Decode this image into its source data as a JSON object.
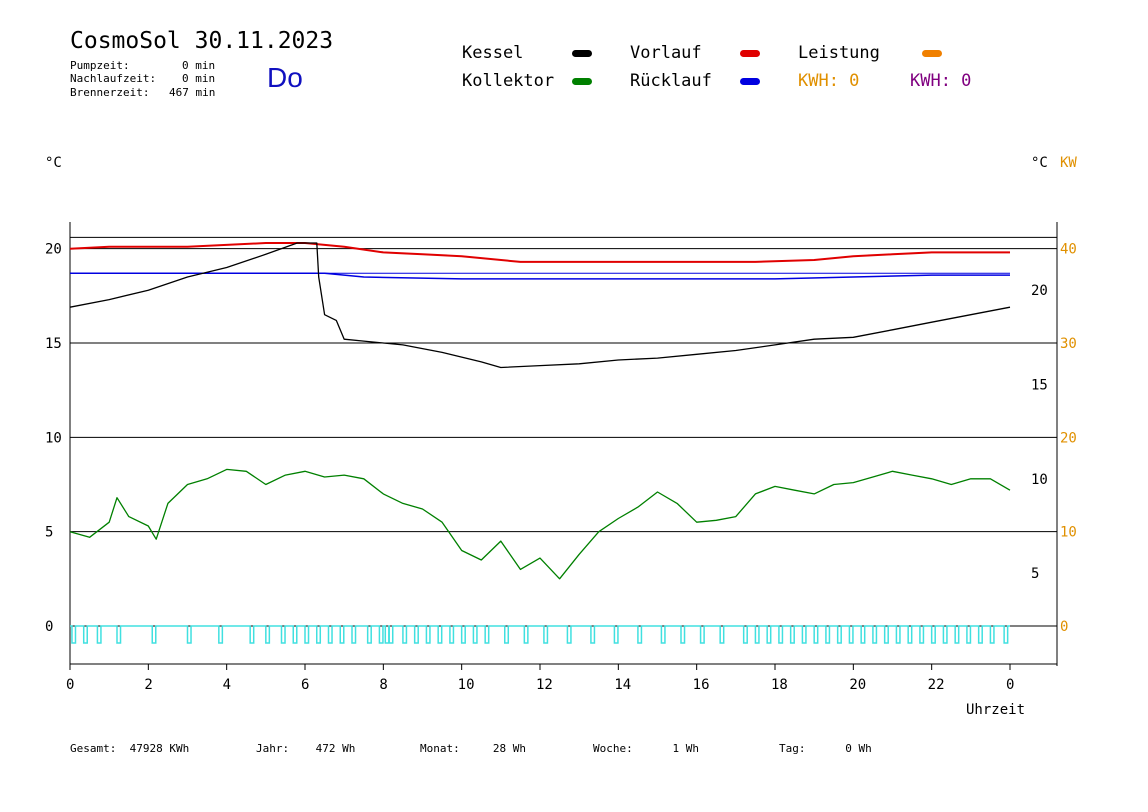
{
  "header": {
    "title": "CosmoSol 30.11.2023",
    "pumpzeit_label": "Pumpzeit:",
    "pumpzeit_value": "0 min",
    "nachlaufzeit_label": "Nachlaufzeit:",
    "nachlaufzeit_value": "0 min",
    "brennerzeit_label": "Brennerzeit:",
    "brennerzeit_value": "467 min",
    "day": "Do"
  },
  "legend": {
    "kessel": {
      "label": "Kessel",
      "color": "#000000"
    },
    "kollektor": {
      "label": "Kollektor",
      "color": "#008000"
    },
    "vorlauf": {
      "label": "Vorlauf",
      "color": "#e00000"
    },
    "ruecklauf": {
      "label": "Rücklauf",
      "color": "#0000e0"
    },
    "leistung": {
      "label": "Leistung",
      "color": "#f08000"
    },
    "kwh1": {
      "label": "KWH: 0",
      "color": "#e09000"
    },
    "kwh2": {
      "label": "KWH: 0",
      "color": "#800080"
    }
  },
  "units": {
    "left": "°C",
    "right": "°C",
    "kw": "KW"
  },
  "summary": {
    "gesamt": "Gesamt:  47928 KWh",
    "jahr": "Jahr:    472 Wh",
    "monat": "Monat:     28 Wh",
    "woche": "Woche:      1 Wh",
    "tag": "Tag:      0 Wh"
  },
  "chart_data": {
    "type": "line",
    "xlabel": "Uhrzeit",
    "x_ticks": [
      "0",
      "2",
      "4",
      "6",
      "8",
      "10",
      "12",
      "14",
      "16",
      "18",
      "20",
      "22",
      "0"
    ],
    "xlim": [
      0,
      24
    ],
    "left_axis": {
      "ticks": [
        0,
        5,
        10,
        15,
        20
      ],
      "ylim": [
        0,
        22
      ]
    },
    "right_axis_c": {
      "ticks": [
        5,
        10,
        15,
        20
      ]
    },
    "right_axis_kw": {
      "ticks": [
        0,
        10,
        20,
        30,
        40
      ],
      "ylim": [
        0,
        44
      ]
    },
    "grid_lines": [
      5,
      10,
      15,
      20
    ],
    "series": [
      {
        "name": "Vorlauf",
        "color": "#e00000",
        "x": [
          0,
          1,
          3,
          5,
          6,
          7,
          8,
          9,
          10,
          11.5,
          14,
          16,
          17.5,
          19,
          20,
          21,
          22,
          24
        ],
        "y": [
          20.0,
          20.1,
          20.1,
          20.3,
          20.3,
          20.1,
          19.8,
          19.7,
          19.6,
          19.3,
          19.3,
          19.3,
          19.3,
          19.4,
          19.6,
          19.7,
          19.8,
          19.8
        ]
      },
      {
        "name": "Rücklauf",
        "color": "#0000e0",
        "x": [
          0,
          2,
          4,
          6.5,
          7,
          7.5,
          10,
          12,
          14,
          16,
          18,
          20,
          22,
          24
        ],
        "y": [
          18.7,
          18.7,
          18.7,
          18.7,
          18.6,
          18.5,
          18.4,
          18.4,
          18.4,
          18.4,
          18.4,
          18.5,
          18.6,
          18.6
        ],
        "note": ""
      },
      {
        "name": "Kessel",
        "color": "#000000",
        "x": [
          0,
          1,
          2,
          3,
          4,
          5,
          5.8,
          6.3,
          6.35,
          6.5,
          6.8,
          7.0,
          7.5,
          8.0,
          8.5,
          9.5,
          10.5,
          11.0,
          12.0,
          13.0,
          14.0,
          15.0,
          16.0,
          17.0,
          18.0,
          19.0,
          20.0,
          21.0,
          22.0,
          23.0,
          24.0
        ],
        "y": [
          16.9,
          17.3,
          17.8,
          18.5,
          19.0,
          19.7,
          20.3,
          20.3,
          18.5,
          16.5,
          16.2,
          15.2,
          15.1,
          15.0,
          14.9,
          14.5,
          14.0,
          13.7,
          13.8,
          13.9,
          14.1,
          14.2,
          14.4,
          14.6,
          14.9,
          15.2,
          15.3,
          15.7,
          16.1,
          16.5,
          16.9
        ]
      },
      {
        "name": "Kollektor",
        "color": "#008000",
        "x": [
          0,
          0.5,
          1.0,
          1.2,
          1.5,
          2.0,
          2.2,
          2.5,
          3.0,
          3.5,
          4.0,
          4.5,
          5.0,
          5.5,
          6.0,
          6.5,
          7.0,
          7.5,
          8.0,
          8.5,
          9.0,
          9.5,
          10.0,
          10.5,
          11.0,
          11.5,
          12.0,
          12.5,
          13.0,
          13.5,
          14.0,
          14.5,
          15.0,
          15.5,
          16.0,
          16.5,
          17.0,
          17.5,
          18.0,
          18.5,
          19.0,
          19.5,
          20.0,
          20.5,
          21.0,
          21.5,
          22.0,
          22.5,
          23.0,
          23.5,
          24.0
        ],
        "y": [
          5.0,
          4.7,
          5.5,
          6.8,
          5.8,
          5.3,
          4.6,
          6.5,
          7.5,
          7.8,
          8.3,
          8.2,
          7.5,
          8.0,
          8.2,
          7.9,
          8.0,
          7.8,
          7.0,
          6.5,
          6.2,
          5.5,
          4.0,
          3.5,
          4.5,
          3.0,
          3.6,
          2.5,
          3.8,
          5.0,
          5.7,
          6.3,
          7.1,
          6.5,
          5.5,
          5.6,
          5.8,
          7.0,
          7.4,
          7.2,
          7.0,
          7.5,
          7.6,
          7.9,
          8.2,
          8.0,
          7.8,
          7.5,
          7.8,
          7.8,
          7.2
        ]
      },
      {
        "name": "Leistung",
        "color": "#40e0e0",
        "type": "pulses",
        "baseline": 0,
        "y_on": 0.6,
        "pulse_times": [
          0.05,
          0.35,
          0.7,
          1.2,
          2.1,
          3.0,
          3.8,
          4.6,
          5.0,
          5.4,
          5.7,
          6.0,
          6.3,
          6.6,
          6.9,
          7.2,
          7.6,
          7.9,
          8.05,
          8.15,
          8.5,
          8.8,
          9.1,
          9.4,
          9.7,
          10.0,
          10.3,
          10.6,
          11.1,
          11.6,
          12.1,
          12.7,
          13.3,
          13.9,
          14.5,
          15.1,
          15.6,
          16.1,
          16.6,
          17.2,
          17.5,
          17.8,
          18.1,
          18.4,
          18.7,
          19.0,
          19.3,
          19.6,
          19.9,
          20.2,
          20.5,
          20.8,
          21.1,
          21.4,
          21.7,
          22.0,
          22.3,
          22.6,
          22.9,
          23.2,
          23.5,
          23.85
        ]
      }
    ]
  }
}
